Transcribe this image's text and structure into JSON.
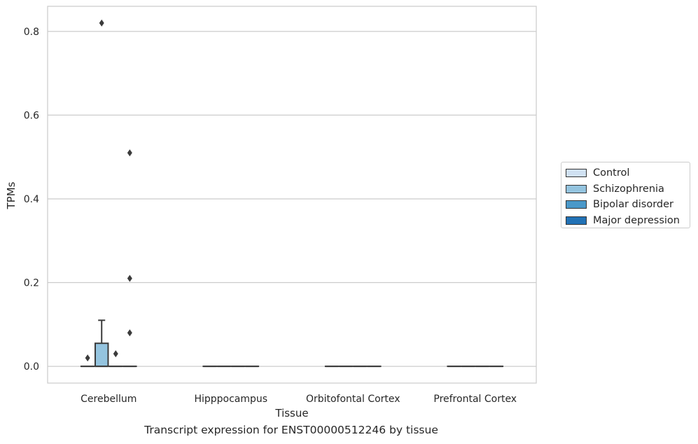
{
  "chart_data": {
    "type": "box",
    "title": "",
    "caption": "Transcript expression for ENST00000512246 by tissue",
    "xlabel": "Tissue",
    "ylabel": "TPMs",
    "ylim": [
      -0.04,
      0.86
    ],
    "yticks": [
      "0.0",
      "0.2",
      "0.4",
      "0.6",
      "0.8"
    ],
    "ytick_values": [
      0.0,
      0.2,
      0.4,
      0.6,
      0.8
    ],
    "grid": true,
    "legend_position": "right",
    "categories": [
      "Cerebellum",
      "Hipppocampus",
      "Orbitofontal Cortex",
      "Prefrontal Cortex"
    ],
    "series": [
      {
        "name": "Control",
        "color": "#d0e1f2",
        "boxes": [
          {
            "q1": 0.0,
            "median": 0.0,
            "q3": 0.0,
            "whisker_low": 0.0,
            "whisker_high": 0.0,
            "outliers": [
              0.02
            ]
          },
          {
            "q1": 0.0,
            "median": 0.0,
            "q3": 0.0,
            "whisker_low": 0.0,
            "whisker_high": 0.0,
            "outliers": []
          },
          {
            "q1": 0.0,
            "median": 0.0,
            "q3": 0.0,
            "whisker_low": 0.0,
            "whisker_high": 0.0,
            "outliers": []
          },
          {
            "q1": 0.0,
            "median": 0.0,
            "q3": 0.0,
            "whisker_low": 0.0,
            "whisker_high": 0.0,
            "outliers": []
          }
        ]
      },
      {
        "name": "Schizophrenia",
        "color": "#94c4df",
        "boxes": [
          {
            "q1": 0.0,
            "median": 0.0,
            "q3": 0.055,
            "whisker_low": 0.0,
            "whisker_high": 0.11,
            "outliers": [
              0.82
            ]
          },
          {
            "q1": 0.0,
            "median": 0.0,
            "q3": 0.0,
            "whisker_low": 0.0,
            "whisker_high": 0.0,
            "outliers": []
          },
          {
            "q1": 0.0,
            "median": 0.0,
            "q3": 0.0,
            "whisker_low": 0.0,
            "whisker_high": 0.0,
            "outliers": []
          },
          {
            "q1": 0.0,
            "median": 0.0,
            "q3": 0.0,
            "whisker_low": 0.0,
            "whisker_high": 0.0,
            "outliers": []
          }
        ]
      },
      {
        "name": "Bipolar disorder",
        "color": "#4a98c9",
        "boxes": [
          {
            "q1": 0.0,
            "median": 0.0,
            "q3": 0.0,
            "whisker_low": 0.0,
            "whisker_high": 0.0,
            "outliers": [
              0.03
            ]
          },
          {
            "q1": 0.0,
            "median": 0.0,
            "q3": 0.0,
            "whisker_low": 0.0,
            "whisker_high": 0.0,
            "outliers": []
          },
          {
            "q1": 0.0,
            "median": 0.0,
            "q3": 0.0,
            "whisker_low": 0.0,
            "whisker_high": 0.0,
            "outliers": []
          },
          {
            "q1": 0.0,
            "median": 0.0,
            "q3": 0.0,
            "whisker_low": 0.0,
            "whisker_high": 0.0,
            "outliers": []
          }
        ]
      },
      {
        "name": "Major depression",
        "color": "#2171b5",
        "boxes": [
          {
            "q1": 0.0,
            "median": 0.0,
            "q3": 0.0,
            "whisker_low": 0.0,
            "whisker_high": 0.0,
            "outliers": [
              0.51,
              0.21,
              0.08
            ]
          },
          {
            "q1": 0.0,
            "median": 0.0,
            "q3": 0.0,
            "whisker_low": 0.0,
            "whisker_high": 0.0,
            "outliers": []
          },
          {
            "q1": 0.0,
            "median": 0.0,
            "q3": 0.0,
            "whisker_low": 0.0,
            "whisker_high": 0.0,
            "outliers": []
          },
          {
            "q1": 0.0,
            "median": 0.0,
            "q3": 0.0,
            "whisker_low": 0.0,
            "whisker_high": 0.0,
            "outliers": []
          }
        ]
      }
    ]
  }
}
